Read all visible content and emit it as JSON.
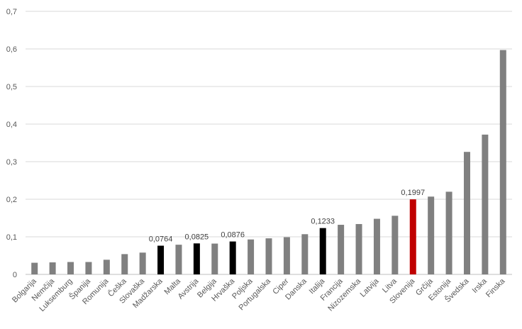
{
  "chart_data": {
    "type": "bar",
    "title": "",
    "xlabel": "",
    "ylabel": "",
    "ylim": [
      0,
      0.7
    ],
    "yticks": [
      "0",
      "0,1",
      "0,2",
      "0,3",
      "0,4",
      "0,5",
      "0,6",
      "0,7"
    ],
    "grid": true,
    "legend": "none",
    "categories": [
      "Bolgarija",
      "Nemčija",
      "Luksemburg",
      "Španija",
      "Romunija",
      "Češka",
      "Slovaška",
      "Madžarska",
      "Malta",
      "Avstrija",
      "Belgija",
      "Hrvaška",
      "Poljska",
      "Portugalska",
      "Ciper",
      "Danska",
      "Italija",
      "Francija",
      "Nizozemska",
      "Latvija",
      "Litva",
      "Slovenija",
      "Grčija",
      "Estonija",
      "Švedska",
      "Irska",
      "Finska"
    ],
    "values": [
      0.031,
      0.032,
      0.033,
      0.033,
      0.039,
      0.054,
      0.058,
      0.0764,
      0.079,
      0.0825,
      0.082,
      0.0876,
      0.093,
      0.096,
      0.099,
      0.107,
      0.1233,
      0.132,
      0.134,
      0.148,
      0.156,
      0.1997,
      0.207,
      0.22,
      0.326,
      0.372,
      0.597
    ],
    "data_labels": {
      "7": "0,0764",
      "9": "0,0825",
      "11": "0,0876",
      "16": "0,1233",
      "21": "0,1997"
    },
    "bar_colors": {
      "default": "#808080",
      "highlight": "#000000",
      "focus": "#c00000"
    },
    "highlighted": [
      7,
      9,
      11,
      16
    ],
    "focus": [
      21
    ]
  }
}
